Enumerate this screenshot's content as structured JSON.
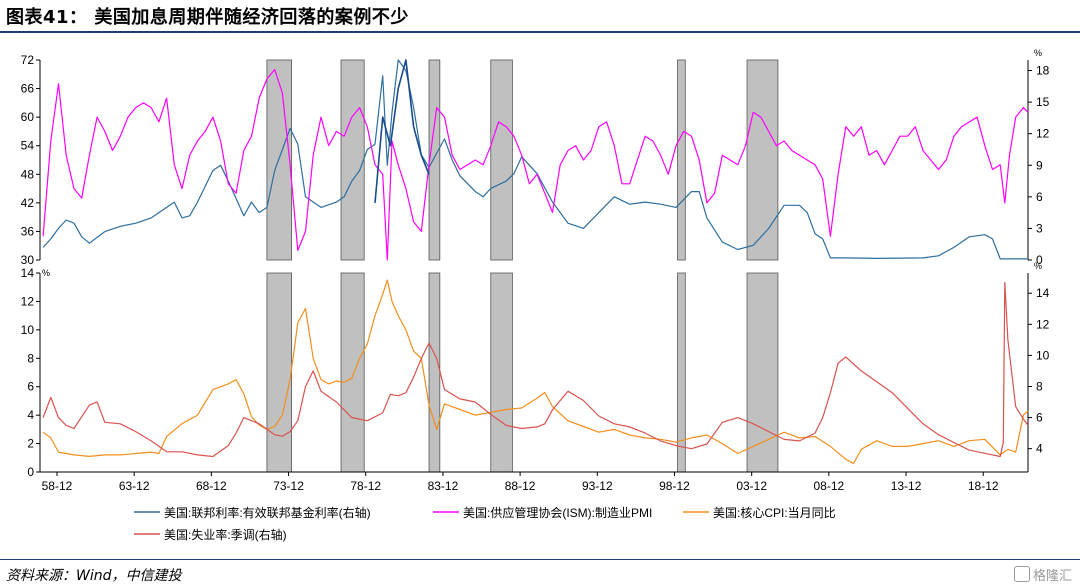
{
  "figure": {
    "title": "图表41： 美国加息周期伴随经济回落的案例不少",
    "source": "资料来源：Wind，中信建投",
    "watermark": "格隆汇"
  },
  "colors": {
    "fed_funds": "#2e6e9e",
    "ism_pmi": "#ff00ff",
    "core_cpi": "#f28e1c",
    "unemployment": "#d9534f",
    "recession_band": "#c0c0c0",
    "title_rule": "#1f3a78"
  },
  "chart_data": [
    {
      "type": "line",
      "panel": "top",
      "ylim_left": [
        30,
        72
      ],
      "yticks_left": [
        "30",
        "36",
        "42",
        "48",
        "54",
        "60",
        "66",
        "72"
      ],
      "ylim_right": [
        0,
        19
      ],
      "yticks_right": [
        "0",
        "3",
        "6",
        "9",
        "12",
        "15",
        "18"
      ],
      "right_unit": "%",
      "xlim": [
        1957.8,
        2021.8
      ],
      "xticks": [
        "58-12",
        "63-12",
        "68-12",
        "73-12",
        "78-12",
        "83-12",
        "88-12",
        "93-12",
        "98-12",
        "03-12",
        "08-12",
        "13-12",
        "18-12"
      ],
      "shaded_periods": [
        [
          1972.5,
          1974.1
        ],
        [
          1977.3,
          1978.8
        ],
        [
          1983.0,
          1983.7
        ],
        [
          1987.0,
          1988.4
        ],
        [
          1999.1,
          1999.6
        ],
        [
          2003.6,
          2005.6
        ]
      ],
      "series": [
        {
          "name": "美国:联邦利率:有效联邦基金利率(右轴)",
          "axis": "right",
          "x": [
            1958.0,
            1958.5,
            1959.0,
            1959.5,
            1960.0,
            1960.5,
            1961.0,
            1962.0,
            1963.0,
            1964.0,
            1965.0,
            1966.0,
            1966.5,
            1967.0,
            1967.5,
            1968.0,
            1969.0,
            1969.5,
            1970.0,
            1971.0,
            1971.5,
            1972.0,
            1972.5,
            1973.0,
            1973.5,
            1974.0,
            1974.5,
            1975.0,
            1976.0,
            1977.0,
            1977.5,
            1978.0,
            1978.5,
            1979.0,
            1979.5,
            1980.0,
            1980.3,
            1980.6,
            1981.0,
            1981.5,
            1982.0,
            1982.5,
            1983.0,
            1984.0,
            1984.5,
            1985.0,
            1986.0,
            1986.5,
            1987.0,
            1988.0,
            1988.5,
            1989.0,
            1990.0,
            1991.0,
            1992.0,
            1993.0,
            1994.0,
            1995.0,
            1996.0,
            1997.0,
            1998.0,
            1999.0,
            2000.0,
            2000.5,
            2001.0,
            2002.0,
            2003.0,
            2004.0,
            2005.0,
            2006.0,
            2007.0,
            2007.5,
            2008.0,
            2008.5,
            2009.0,
            2010.0,
            2012.0,
            2015.0,
            2016.0,
            2017.0,
            2018.0,
            2019.0,
            2019.5,
            2020.0,
            2021.0,
            2021.8
          ],
          "y": [
            1.2,
            2.0,
            3.0,
            3.8,
            3.5,
            2.2,
            1.6,
            2.7,
            3.2,
            3.5,
            4.0,
            5.0,
            5.5,
            4.0,
            4.2,
            5.5,
            8.5,
            9.0,
            7.5,
            4.2,
            5.5,
            4.5,
            5.0,
            8.5,
            10.5,
            12.5,
            11.0,
            6.0,
            5.0,
            5.5,
            6.0,
            7.5,
            8.5,
            10.5,
            11.0,
            17.5,
            9.0,
            14.0,
            19.0,
            18.0,
            14.5,
            10.0,
            8.8,
            11.5,
            9.5,
            8.0,
            6.5,
            6.0,
            6.8,
            7.5,
            8.2,
            9.8,
            8.2,
            5.5,
            3.5,
            3.0,
            4.5,
            6.0,
            5.3,
            5.5,
            5.3,
            5.0,
            6.5,
            6.5,
            4.0,
            1.7,
            1.0,
            1.4,
            3.0,
            5.2,
            5.2,
            4.5,
            2.5,
            2.0,
            0.2,
            0.2,
            0.15,
            0.2,
            0.4,
            1.2,
            2.2,
            2.4,
            2.0,
            0.1,
            0.1,
            0.1
          ]
        },
        {
          "name": "美国:供应管理协会(ISM):制造业PMI",
          "axis": "left",
          "x": [
            1958.0,
            1958.5,
            1959.0,
            1959.5,
            1960.0,
            1960.5,
            1961.0,
            1961.5,
            1962.0,
            1962.5,
            1963.0,
            1963.5,
            1964.0,
            1964.5,
            1965.0,
            1965.5,
            1966.0,
            1966.5,
            1967.0,
            1967.5,
            1968.0,
            1968.5,
            1969.0,
            1969.5,
            1970.0,
            1970.5,
            1971.0,
            1971.5,
            1972.0,
            1972.5,
            1973.0,
            1973.5,
            1974.0,
            1974.5,
            1975.0,
            1975.5,
            1976.0,
            1976.5,
            1977.0,
            1977.5,
            1978.0,
            1978.5,
            1979.0,
            1979.5,
            1980.0,
            1980.3,
            1980.6,
            1981.0,
            1981.5,
            1982.0,
            1982.5,
            1983.0,
            1983.5,
            1984.0,
            1984.5,
            1985.0,
            1985.5,
            1986.0,
            1986.5,
            1987.0,
            1987.5,
            1988.0,
            1988.5,
            1989.0,
            1989.5,
            1990.0,
            1990.5,
            1991.0,
            1991.5,
            1992.0,
            1992.5,
            1993.0,
            1993.5,
            1994.0,
            1994.5,
            1995.0,
            1995.5,
            1996.0,
            1996.5,
            1997.0,
            1997.5,
            1998.0,
            1998.5,
            1999.0,
            1999.5,
            2000.0,
            2000.5,
            2001.0,
            2001.5,
            2002.0,
            2002.5,
            2003.0,
            2003.5,
            2004.0,
            2004.5,
            2005.0,
            2005.5,
            2006.0,
            2006.5,
            2007.0,
            2007.5,
            2008.0,
            2008.5,
            2009.0,
            2009.5,
            2010.0,
            2010.5,
            2011.0,
            2011.5,
            2012.0,
            2012.5,
            2013.0,
            2013.5,
            2014.0,
            2014.5,
            2015.0,
            2015.5,
            2016.0,
            2016.5,
            2017.0,
            2017.5,
            2018.0,
            2018.5,
            2019.0,
            2019.5,
            2020.0,
            2020.3,
            2020.6,
            2021.0,
            2021.5,
            2021.8
          ],
          "y": [
            35,
            55,
            67,
            52,
            45,
            43,
            52,
            60,
            57,
            53,
            56,
            60,
            62,
            63,
            62,
            59,
            64,
            50,
            45,
            52,
            55,
            57,
            60,
            55,
            46,
            44,
            53,
            56,
            64,
            68,
            70,
            65,
            50,
            32,
            36,
            52,
            60,
            54,
            57,
            56,
            60,
            62,
            58,
            50,
            48,
            30,
            55,
            50,
            45,
            38,
            36,
            50,
            62,
            60,
            52,
            49,
            50,
            51,
            50,
            54,
            59,
            58,
            56,
            52,
            46,
            48,
            44,
            40,
            50,
            53,
            54,
            51,
            53,
            58,
            59,
            54,
            46,
            46,
            51,
            56,
            55,
            52,
            48,
            54,
            57,
            56,
            51,
            42,
            44,
            52,
            51,
            50,
            54,
            61,
            60,
            57,
            54,
            55,
            53,
            52,
            51,
            50,
            47,
            35,
            48,
            58,
            56,
            58,
            52,
            53,
            50,
            53,
            56,
            56,
            58,
            53,
            51,
            49,
            51,
            56,
            58,
            59,
            60,
            54,
            49,
            50,
            42,
            52,
            60,
            62,
            61
          ]
        },
        {
          "name": "",
          "axis": "left",
          "note": "unlabeled dark blue segment",
          "x": [
            1979.5,
            1980.0,
            1980.5,
            1981.0,
            1981.5,
            1982.0,
            1982.5,
            1983.0
          ],
          "y": [
            42,
            60,
            54,
            66,
            72,
            58,
            52,
            48
          ]
        }
      ]
    },
    {
      "type": "line",
      "panel": "bottom",
      "ylim_left": [
        0,
        14
      ],
      "yticks_left": [
        "0",
        "2",
        "4",
        "6",
        "8",
        "10",
        "12",
        "14"
      ],
      "left_unit": "%",
      "ylim_right": [
        2.5,
        15.3
      ],
      "yticks_right": [
        "4",
        "6",
        "8",
        "10",
        "12",
        "14"
      ],
      "right_unit": "%",
      "xlim": [
        1957.8,
        2021.8
      ],
      "xticks": [
        "58-12",
        "63-12",
        "68-12",
        "73-12",
        "78-12",
        "83-12",
        "88-12",
        "93-12",
        "98-12",
        "03-12",
        "08-12",
        "13-12",
        "18-12"
      ],
      "shaded_periods": [
        [
          1972.5,
          1974.1
        ],
        [
          1977.3,
          1978.8
        ],
        [
          1983.0,
          1983.7
        ],
        [
          1987.0,
          1988.4
        ],
        [
          1999.1,
          1999.6
        ],
        [
          2003.6,
          2005.6
        ]
      ],
      "series": [
        {
          "name": "美国:核心CPI:当月同比",
          "axis": "left",
          "x": [
            1958.0,
            1958.5,
            1959.0,
            1960.0,
            1961.0,
            1962.0,
            1963.0,
            1964.0,
            1965.0,
            1965.5,
            1966.0,
            1967.0,
            1968.0,
            1969.0,
            1970.0,
            1970.5,
            1971.0,
            1971.5,
            1972.0,
            1972.5,
            1973.0,
            1973.5,
            1974.0,
            1974.5,
            1975.0,
            1975.5,
            1976.0,
            1976.5,
            1977.0,
            1977.5,
            1978.0,
            1978.5,
            1979.0,
            1979.5,
            1980.0,
            1980.3,
            1980.6,
            1981.0,
            1981.5,
            1982.0,
            1982.5,
            1983.0,
            1983.5,
            1984.0,
            1985.0,
            1986.0,
            1987.0,
            1988.0,
            1989.0,
            1990.0,
            1990.5,
            1991.0,
            1992.0,
            1993.0,
            1994.0,
            1995.0,
            1996.0,
            1997.0,
            1998.0,
            1999.0,
            2000.0,
            2001.0,
            2002.0,
            2003.0,
            2004.0,
            2005.0,
            2006.0,
            2007.0,
            2008.0,
            2009.0,
            2010.0,
            2010.5,
            2011.0,
            2012.0,
            2013.0,
            2014.0,
            2015.0,
            2016.0,
            2017.0,
            2018.0,
            2019.0,
            2020.0,
            2020.5,
            2021.0,
            2021.5,
            2021.8
          ],
          "y": [
            2.8,
            2.4,
            1.4,
            1.2,
            1.1,
            1.2,
            1.2,
            1.3,
            1.4,
            1.3,
            2.5,
            3.4,
            4.0,
            5.8,
            6.2,
            6.5,
            5.5,
            3.9,
            3.3,
            3.0,
            3.2,
            4.0,
            6.5,
            10.5,
            11.5,
            8.0,
            6.5,
            6.2,
            6.4,
            6.3,
            6.6,
            8.0,
            9.0,
            11.0,
            12.5,
            13.5,
            12.0,
            11.0,
            10.0,
            8.5,
            8.0,
            4.7,
            3.0,
            4.8,
            4.4,
            4.0,
            4.2,
            4.4,
            4.5,
            5.2,
            5.6,
            4.6,
            3.6,
            3.2,
            2.8,
            3.0,
            2.6,
            2.4,
            2.3,
            2.1,
            2.4,
            2.6,
            2.0,
            1.3,
            1.8,
            2.3,
            2.8,
            2.4,
            2.5,
            1.8,
            0.9,
            0.6,
            1.6,
            2.2,
            1.8,
            1.8,
            2.0,
            2.2,
            1.8,
            2.2,
            2.3,
            1.2,
            1.6,
            1.4,
            4.0,
            4.3
          ]
        },
        {
          "name": "美国:失业率:季调(右轴)",
          "axis": "right",
          "x": [
            1958.0,
            1958.5,
            1959.0,
            1959.5,
            1960.0,
            1961.0,
            1961.5,
            1962.0,
            1963.0,
            1964.0,
            1965.0,
            1966.0,
            1967.0,
            1968.0,
            1969.0,
            1970.0,
            1970.5,
            1971.0,
            1972.0,
            1973.0,
            1973.5,
            1974.0,
            1974.5,
            1975.0,
            1975.5,
            1976.0,
            1977.0,
            1978.0,
            1979.0,
            1980.0,
            1980.5,
            1981.0,
            1981.5,
            1982.0,
            1982.5,
            1983.0,
            1983.5,
            1984.0,
            1985.0,
            1986.0,
            1987.0,
            1988.0,
            1989.0,
            1990.0,
            1990.5,
            1991.0,
            1992.0,
            1993.0,
            1994.0,
            1995.0,
            1996.0,
            1997.0,
            1998.0,
            1999.0,
            2000.0,
            2001.0,
            2002.0,
            2003.0,
            2004.0,
            2005.0,
            2006.0,
            2007.0,
            2008.0,
            2008.5,
            2009.0,
            2009.5,
            2010.0,
            2011.0,
            2012.0,
            2013.0,
            2014.0,
            2015.0,
            2016.0,
            2017.0,
            2018.0,
            2019.0,
            2020.0,
            2020.2,
            2020.3,
            2020.5,
            2021.0,
            2021.5,
            2021.8
          ],
          "y": [
            6.0,
            7.3,
            6.0,
            5.5,
            5.3,
            6.8,
            7.0,
            5.7,
            5.6,
            5.1,
            4.5,
            3.8,
            3.8,
            3.6,
            3.5,
            4.2,
            5.0,
            6.0,
            5.6,
            4.9,
            4.8,
            5.1,
            5.8,
            8.0,
            9.0,
            7.7,
            7.0,
            6.0,
            5.8,
            6.3,
            7.5,
            7.4,
            7.6,
            8.6,
            9.8,
            10.8,
            9.8,
            7.8,
            7.2,
            7.0,
            6.2,
            5.5,
            5.3,
            5.4,
            5.6,
            6.5,
            7.7,
            7.1,
            6.1,
            5.6,
            5.4,
            5.0,
            4.5,
            4.2,
            4.0,
            4.3,
            5.7,
            6.0,
            5.6,
            5.1,
            4.6,
            4.5,
            5.0,
            6.0,
            7.6,
            9.5,
            9.9,
            9.0,
            8.3,
            7.6,
            6.6,
            5.6,
            4.9,
            4.4,
            3.9,
            3.7,
            3.5,
            4.4,
            14.7,
            11.0,
            6.7,
            5.9,
            5.5
          ]
        }
      ]
    }
  ],
  "legend": [
    {
      "label": "美国:联邦利率:有效联邦基金利率(右轴)",
      "color": "#2e6e9e"
    },
    {
      "label": "美国:供应管理协会(ISM):制造业PMI",
      "color": "#ff00ff"
    },
    {
      "label": "美国:核心CPI:当月同比",
      "color": "#f28e1c"
    },
    {
      "label": "美国:失业率:季调(右轴)",
      "color": "#d9534f"
    }
  ]
}
